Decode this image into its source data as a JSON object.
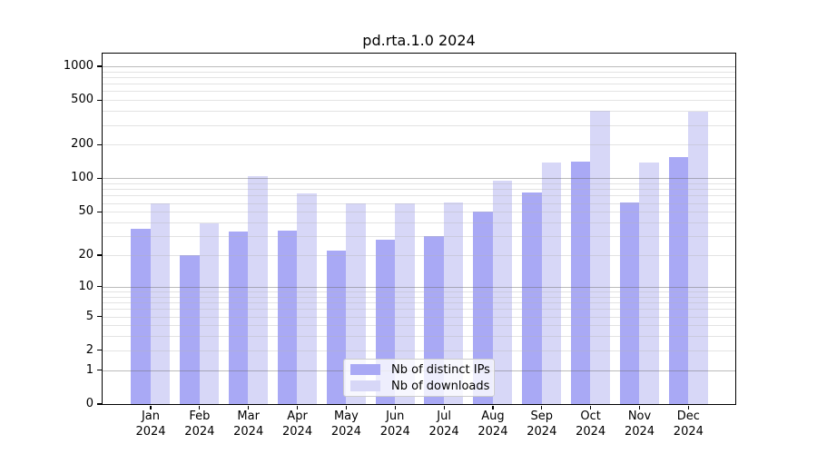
{
  "chart_data": {
    "type": "bar",
    "title": "pd.rta.1.0 2024",
    "scale": "log1p",
    "categories": [
      "Jan",
      "Feb",
      "Mar",
      "Apr",
      "May",
      "Jun",
      "Jul",
      "Aug",
      "Sep",
      "Oct",
      "Nov",
      "Dec"
    ],
    "x_year_label": "2024",
    "series": [
      {
        "name": "Nb of distinct IPs",
        "color": "#a9a9f5",
        "values": [
          35,
          20,
          33,
          34,
          22,
          28,
          30,
          50,
          75,
          142,
          61,
          155
        ]
      },
      {
        "name": "Nb of downloads",
        "color": "#d7d7f7",
        "values": [
          60,
          39,
          105,
          73,
          60,
          60,
          61,
          95,
          140,
          400,
          140,
          395
        ]
      }
    ],
    "ytick_labels": [
      "0",
      "1",
      "2",
      "5",
      "10",
      "20",
      "50",
      "100",
      "200",
      "500",
      "1000"
    ],
    "ylim": [
      0,
      1290
    ],
    "grid": "on",
    "major_grid_at": [
      1,
      10,
      100,
      1000
    ],
    "legend_position": "lower center"
  }
}
